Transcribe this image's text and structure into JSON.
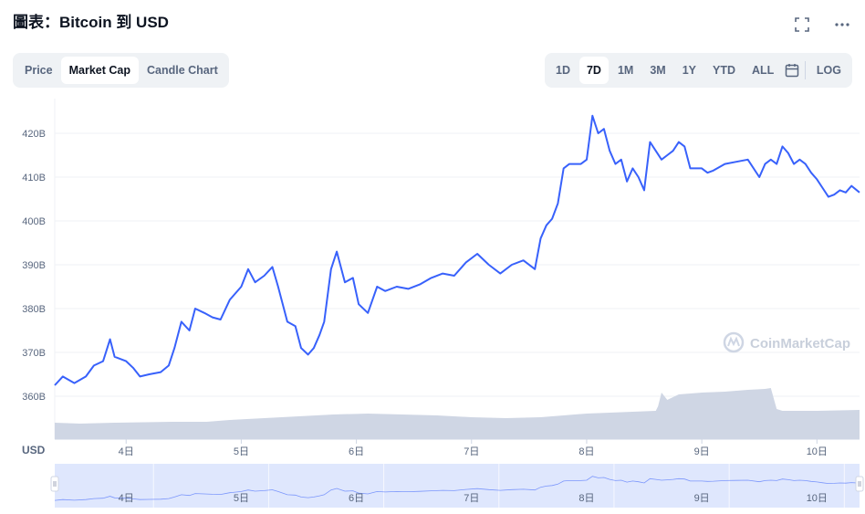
{
  "header": {
    "title": "圖表：Bitcoin 到 USD",
    "expand_icon": "expand-icon",
    "more_icon": "more-horizontal-icon"
  },
  "chart_tabs": [
    {
      "label": "Price",
      "active": false
    },
    {
      "label": "Market Cap",
      "active": true
    },
    {
      "label": "Candle Chart",
      "active": false
    }
  ],
  "range_tabs": [
    {
      "label": "1D",
      "active": false
    },
    {
      "label": "7D",
      "active": true
    },
    {
      "label": "1M",
      "active": false
    },
    {
      "label": "3M",
      "active": false
    },
    {
      "label": "1Y",
      "active": false
    },
    {
      "label": "YTD",
      "active": false
    },
    {
      "label": "ALL",
      "active": false
    }
  ],
  "calendar_icon": "calendar-icon",
  "log_label": "LOG",
  "watermark": "CoinMarketCap",
  "colors": {
    "line": "#3861fb",
    "volume": "#cfd6e4",
    "navigator_fill": "#dfe7fd",
    "segment_bg": "#eff2f5",
    "axis_text": "#58667e"
  },
  "chart_data": {
    "type": "line",
    "title": "圖表：Bitcoin 到 USD",
    "ylabel": "USD",
    "xlabel": "",
    "yticks": [
      "360B",
      "370B",
      "380B",
      "390B",
      "400B",
      "410B",
      "420B"
    ],
    "ytick_values": [
      360,
      370,
      380,
      390,
      400,
      410,
      420
    ],
    "ylim": [
      350,
      428
    ],
    "xticks": [
      "4日",
      "5日",
      "6日",
      "7日",
      "8日",
      "9日",
      "10日"
    ],
    "xtick_values": [
      4,
      5,
      6,
      7,
      8,
      9,
      10
    ],
    "xlim": [
      3.38,
      10.37
    ],
    "grid": "horizontal",
    "series": [
      {
        "values_unit": "B USD",
        "x": [
          3.38,
          3.45,
          3.55,
          3.65,
          3.72,
          3.8,
          3.86,
          3.9,
          4.0,
          4.06,
          4.12,
          4.2,
          4.3,
          4.37,
          4.42,
          4.48,
          4.55,
          4.6,
          4.68,
          4.75,
          4.82,
          4.9,
          5.0,
          5.06,
          5.12,
          5.2,
          5.27,
          5.32,
          5.4,
          5.47,
          5.52,
          5.58,
          5.63,
          5.68,
          5.72,
          5.78,
          5.83,
          5.9,
          5.97,
          6.02,
          6.1,
          6.18,
          6.25,
          6.35,
          6.45,
          6.55,
          6.65,
          6.75,
          6.85,
          6.95,
          7.05,
          7.15,
          7.25,
          7.35,
          7.45,
          7.55,
          7.6,
          7.65,
          7.7,
          7.75,
          7.8,
          7.85,
          7.9,
          7.95,
          8.0,
          8.05,
          8.1,
          8.15,
          8.2,
          8.25,
          8.3,
          8.35,
          8.4,
          8.45,
          8.5,
          8.55,
          8.6,
          8.65,
          8.7,
          8.75,
          8.8,
          8.85,
          8.9,
          8.95,
          9.0,
          9.05,
          9.1,
          9.2,
          9.3,
          9.4,
          9.5,
          9.55,
          9.6,
          9.65,
          9.7,
          9.75,
          9.8,
          9.85,
          9.9,
          9.95,
          10.0,
          10.05,
          10.1,
          10.15,
          10.2,
          10.25,
          10.3,
          10.37
        ],
        "values": [
          362.5,
          364.5,
          363.0,
          364.5,
          367.0,
          368.0,
          373.0,
          369.0,
          368.0,
          366.5,
          364.5,
          365.0,
          365.5,
          367.0,
          371.0,
          377.0,
          375.0,
          380.0,
          379.0,
          378.0,
          377.5,
          382.0,
          385.0,
          389.0,
          386.0,
          387.5,
          389.5,
          385.0,
          377.0,
          376.0,
          371.0,
          369.5,
          371.0,
          374.0,
          377.0,
          389.0,
          393.0,
          386.0,
          387.0,
          381.0,
          379.0,
          385.0,
          384.0,
          385.0,
          384.5,
          385.5,
          387.0,
          388.0,
          387.5,
          390.5,
          392.5,
          390.0,
          388.0,
          390.0,
          391.0,
          389.0,
          396.0,
          399.0,
          400.5,
          404.0,
          412.0,
          413.0,
          413.0,
          413.0,
          414.0,
          424.0,
          420.0,
          421.0,
          416.0,
          413.0,
          414.0,
          409.0,
          412.0,
          410.0,
          407.0,
          418.0,
          416.0,
          414.0,
          415.0,
          416.0,
          418.0,
          417.0,
          412.0,
          412.0,
          412.0,
          411.0,
          411.5,
          413.0,
          413.5,
          414.0,
          410.0,
          413.0,
          414.0,
          413.0,
          417.0,
          415.5,
          413.0,
          414.0,
          413.0,
          411.0,
          409.5,
          407.5,
          405.5,
          406.0,
          407.0,
          406.5,
          408.0,
          406.5
        ]
      }
    ]
  }
}
